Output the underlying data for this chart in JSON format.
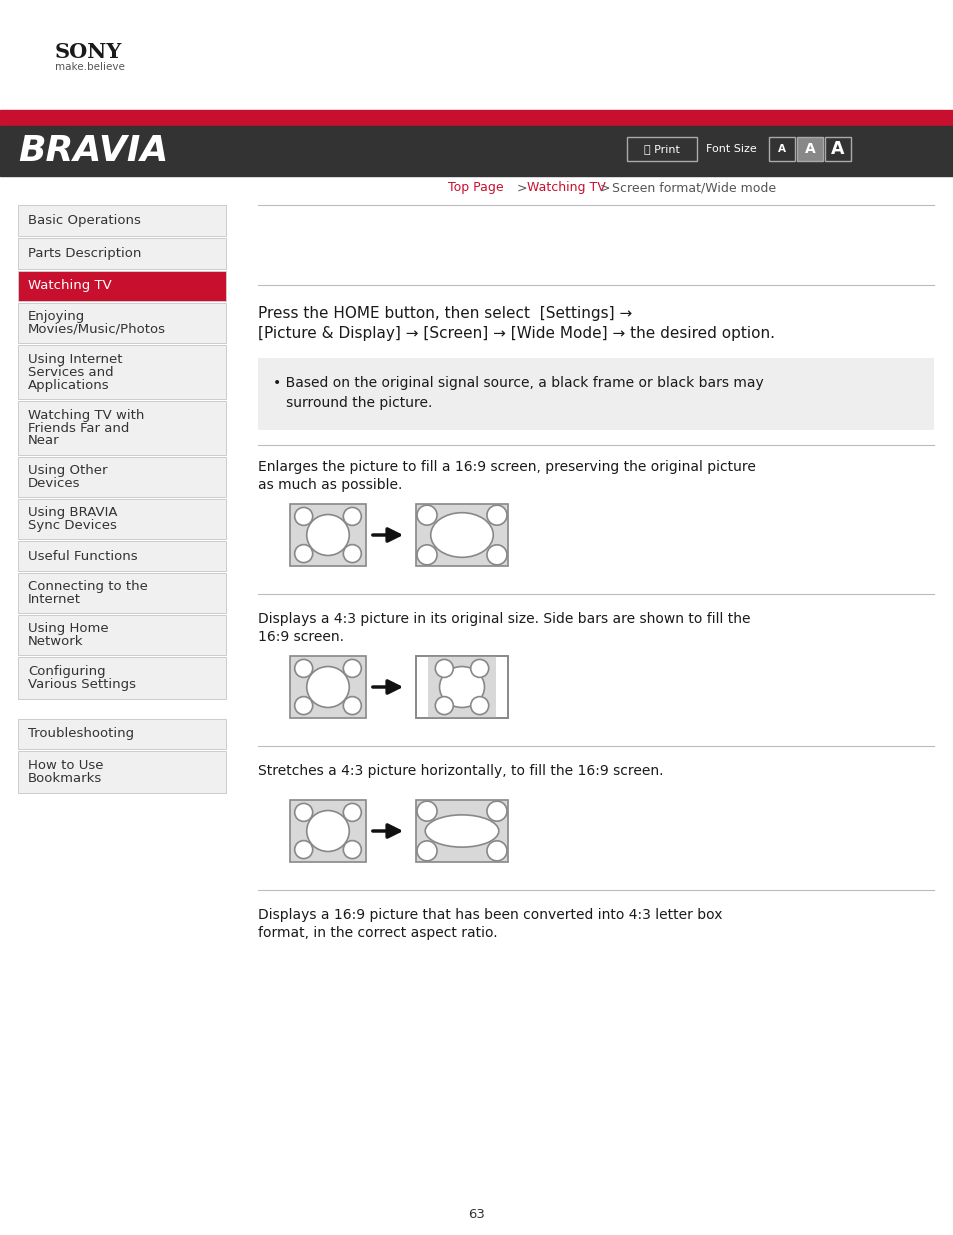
{
  "bg_color": "#ffffff",
  "header_red": "#c8102e",
  "header_dark": "#333333",
  "bravia_text": "BRAVIA",
  "sony_logo": "SONY",
  "sony_tagline": "make.believe",
  "nav_items": [
    {
      "text": "Basic Operations",
      "active": false
    },
    {
      "text": "Parts Description",
      "active": false
    },
    {
      "text": "Watching TV",
      "active": true
    },
    {
      "text": "Enjoying\nMovies/Music/Photos",
      "active": false
    },
    {
      "text": "Using Internet\nServices and\nApplications",
      "active": false
    },
    {
      "text": "Watching TV with\nFriends Far and\nNear",
      "active": false
    },
    {
      "text": "Using Other\nDevices",
      "active": false
    },
    {
      "text": "Using BRAVIA\nSync Devices",
      "active": false
    },
    {
      "text": "Useful Functions",
      "active": false
    },
    {
      "text": "Connecting to the\nInternet",
      "active": false
    },
    {
      "text": "Using Home\nNetwork",
      "active": false
    },
    {
      "text": "Configuring\nVarious Settings",
      "active": false
    }
  ],
  "nav_items2": [
    {
      "text": "Troubleshooting",
      "active": false
    },
    {
      "text": "How to Use\nBookmarks",
      "active": false
    }
  ],
  "main_line1": "Press the HOME button, then select  [Settings] →  ",
  "main_line2": "[Picture & Display] → [Screen] → [Wide Mode] → the desired option.",
  "note_line1": "• Based on the original signal source, a black frame or black bars may",
  "note_line2": "   surround the picture.",
  "section1_line1": "Enlarges the picture to fill a 16:9 screen, preserving the original picture",
  "section1_line2": "as much as possible.",
  "section2_line1": "Displays a 4:3 picture in its original size. Side bars are shown to fill the",
  "section2_line2": "16:9 screen.",
  "section3_line1": "Stretches a 4:3 picture horizontally, to fill the 16:9 screen.",
  "section4_line1": "Displays a 16:9 picture that has been converted into 4:3 letter box",
  "section4_line2": "format, in the correct aspect ratio.",
  "page_number": "63",
  "nav_bg": "#f0f0f0",
  "nav_active_bg": "#c8102e",
  "nav_active_text": "#ffffff",
  "nav_text": "#333333",
  "nav_border": "#cccccc",
  "note_bg": "#eeeeee",
  "separator_color": "#bbbbbb",
  "link_color": "#c8102e",
  "diagram_bg": "#d8d8d8",
  "diagram_border": "#888888",
  "circle_fill": "#ffffff",
  "circle_edge": "#888888"
}
